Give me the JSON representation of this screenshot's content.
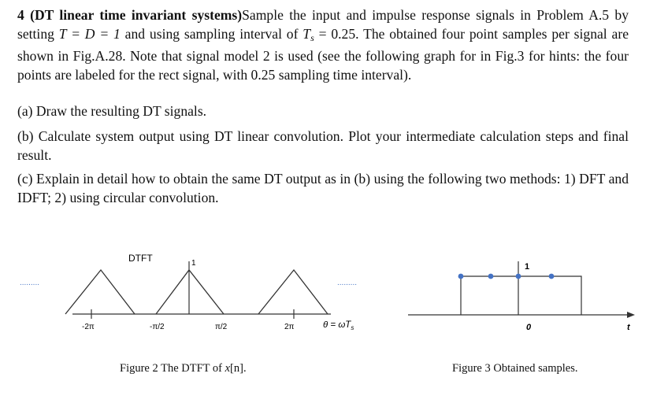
{
  "problem": {
    "number": "4",
    "title": "(DT linear time invariant systems)",
    "intro_1": "Sample the input and impulse response signals in Problem A.5 by setting ",
    "eq_1": "T = D = 1",
    "intro_2": " and using sampling interval of ",
    "eq_2_var": "T",
    "eq_2_sub": "s",
    "eq_2_val": " = 0.25",
    "intro_3": ". The obtained four point samples per signal are shown in Fig.A.28. Note that signal model 2 is used (see the following graph for in Fig.3 for hints: the four points are labeled for the rect signal, with 0.25 sampling time interval).",
    "part_a": "(a) Draw the resulting DT signals.",
    "part_b": "(b) Calculate system output using DT linear convolution. Plot your intermediate calculation steps and final result.",
    "part_c": "(c) Explain in detail how to obtain the same DT output as in (b) using the following two methods: 1) DFT and IDFT; 2) using circular convolution."
  },
  "figure2": {
    "title": "DTFT",
    "peak_label": "1",
    "tick_labels": [
      "-2π",
      "-π/2",
      "π/2",
      "2π"
    ],
    "axis_label": "θ = ωT",
    "axis_label_sub": "s",
    "dots_left": ".........",
    "dots_right": ".........",
    "caption_prefix": "Figure 2 The DTFT of ",
    "caption_var": "x",
    "caption_suffix": "[n].",
    "line_color": "#333333"
  },
  "figure3": {
    "amplitude_label": "1",
    "origin_label": "0",
    "axis_label": "t",
    "caption": "Figure 3 Obtained samples.",
    "point_color": "#4472c4",
    "line_color": "#333333"
  }
}
